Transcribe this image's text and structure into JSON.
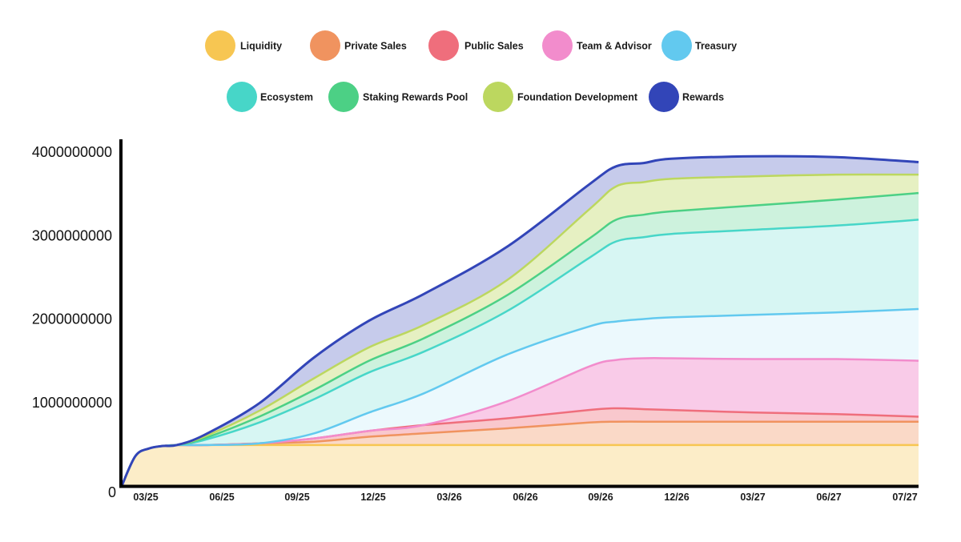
{
  "chart_data": {
    "type": "area",
    "stacked": true,
    "title": "",
    "xlabel": "",
    "ylabel": "",
    "x_tick_labels": [
      "03/25",
      "06/25",
      "09/25",
      "12/25",
      "03/26",
      "06/26",
      "09/26",
      "12/26",
      "03/27",
      "06/27",
      "07/27"
    ],
    "y_tick_labels": [
      "0",
      "1000000000",
      "2000000000",
      "3000000000",
      "4000000000"
    ],
    "ylim": [
      0,
      4000000000
    ],
    "x_month_range": [
      0,
      29
    ],
    "legend_position": "top",
    "x_months": [
      0,
      0.5,
      1,
      1.5,
      2,
      3,
      5,
      7,
      9,
      11,
      14,
      17,
      18,
      19,
      20,
      23,
      26,
      29
    ],
    "series": [
      {
        "name": "Liquidity",
        "color": "#f7c652",
        "values": [
          0,
          360000000,
          450000000,
          480000000,
          490000000,
          490000000,
          490000000,
          490000000,
          490000000,
          490000000,
          490000000,
          490000000,
          490000000,
          490000000,
          490000000,
          490000000,
          490000000,
          490000000
        ]
      },
      {
        "name": "Private Sales",
        "color": "#f0935f",
        "values": [
          0,
          0,
          0,
          0,
          0,
          0,
          20000000,
          40000000,
          100000000,
          140000000,
          200000000,
          270000000,
          280000000,
          280000000,
          280000000,
          280000000,
          280000000,
          280000000
        ]
      },
      {
        "name": "Public Sales",
        "color": "#ef6e7c",
        "values": [
          0,
          0,
          0,
          0,
          0,
          0,
          0,
          40000000,
          70000000,
          100000000,
          120000000,
          150000000,
          160000000,
          150000000,
          140000000,
          110000000,
          90000000,
          60000000
        ]
      },
      {
        "name": "Team & Advisor",
        "color": "#f28ccc",
        "values": [
          0,
          0,
          0,
          0,
          0,
          0,
          0,
          0,
          0,
          0,
          200000000,
          520000000,
          580000000,
          610000000,
          620000000,
          640000000,
          660000000,
          670000000
        ]
      },
      {
        "name": "Treasury",
        "color": "#62c9ef",
        "values": [
          0,
          0,
          0,
          0,
          0,
          0,
          0,
          60000000,
          220000000,
          380000000,
          560000000,
          480000000,
          460000000,
          470000000,
          490000000,
          530000000,
          560000000,
          620000000
        ]
      },
      {
        "name": "Ecosystem",
        "color": "#47d6c8",
        "values": [
          0,
          0,
          0,
          0,
          0,
          60000000,
          250000000,
          410000000,
          480000000,
          500000000,
          520000000,
          820000000,
          960000000,
          980000000,
          1000000000,
          1020000000,
          1040000000,
          1070000000
        ]
      },
      {
        "name": "Staking Rewards Pool",
        "color": "#4cd085",
        "values": [
          0,
          0,
          0,
          0,
          0,
          20000000,
          70000000,
          110000000,
          140000000,
          160000000,
          190000000,
          230000000,
          260000000,
          270000000,
          270000000,
          290000000,
          310000000,
          320000000
        ]
      },
      {
        "name": "Foundation Development",
        "color": "#bcd75f",
        "values": [
          0,
          0,
          0,
          0,
          0,
          20000000,
          70000000,
          140000000,
          160000000,
          160000000,
          180000000,
          350000000,
          400000000,
          390000000,
          390000000,
          350000000,
          300000000,
          220000000
        ]
      },
      {
        "name": "Rewards",
        "color": "#3245b8",
        "values": [
          0,
          0,
          0,
          0,
          0,
          20000000,
          90000000,
          250000000,
          320000000,
          370000000,
          400000000,
          300000000,
          240000000,
          230000000,
          240000000,
          240000000,
          210000000,
          150000000
        ]
      }
    ]
  }
}
